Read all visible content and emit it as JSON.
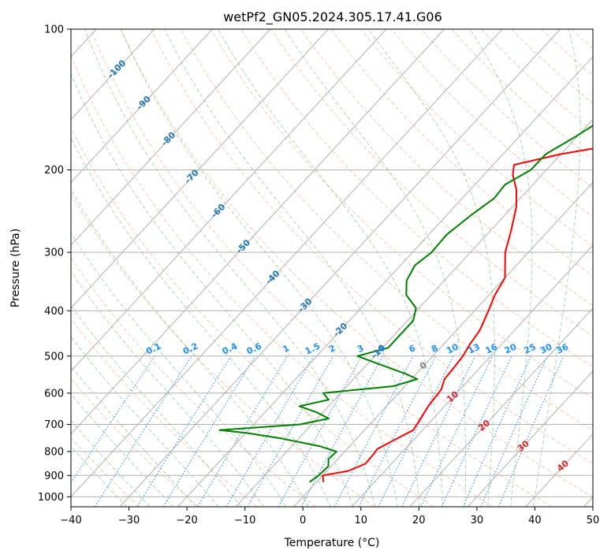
{
  "chart_data": {
    "type": "line",
    "subtype": "skew-T log-P diagram",
    "title": "wetPf2_GN05.2024.305.17.41.G06",
    "xlabel": "Temperature (°C)",
    "ylabel": "Pressure (hPa)",
    "xlim": [
      -40,
      50
    ],
    "ylim": [
      1050,
      100
    ],
    "y_scale": "log",
    "x_ticks": [
      -40,
      -30,
      -20,
      -10,
      0,
      10,
      20,
      30,
      40,
      50
    ],
    "y_ticks": [
      100,
      200,
      300,
      400,
      500,
      600,
      700,
      800,
      900,
      1000
    ],
    "x_tick_labels": [
      "−40",
      "−30",
      "−20",
      "−10",
      "0",
      "10",
      "20",
      "30",
      "40",
      "50"
    ],
    "y_tick_labels": [
      "100",
      "200",
      "300",
      "400",
      "500",
      "600",
      "700",
      "800",
      "900",
      "1000"
    ],
    "grid": true,
    "series": [
      {
        "color": "#ff0000",
        "points": [
          [
            930,
            1.2
          ],
          [
            900,
            0.0
          ],
          [
            880,
            3.7
          ],
          [
            850,
            5.5
          ],
          [
            810,
            5.4
          ],
          [
            790,
            5.2
          ],
          [
            760,
            6.5
          ],
          [
            720,
            8.4
          ],
          [
            690,
            8.0
          ],
          [
            640,
            7.2
          ],
          [
            590,
            6.8
          ],
          [
            560,
            5.7
          ],
          [
            520,
            5.4
          ],
          [
            500,
            5.2
          ],
          [
            470,
            4.5
          ],
          [
            440,
            4.0
          ],
          [
            400,
            2.4
          ],
          [
            370,
            1.0
          ],
          [
            340,
            0.0
          ],
          [
            300,
            -4.0
          ],
          [
            270,
            -6.4
          ],
          [
            240,
            -9.3
          ],
          [
            220,
            -12.1
          ],
          [
            205,
            -15.0
          ],
          [
            195,
            -16.4
          ],
          [
            185,
            -10.0
          ],
          [
            175,
            -0.5
          ],
          [
            160,
            8.5
          ],
          [
            145,
            14.6
          ],
          [
            135,
            15.6
          ],
          [
            125,
            14.0
          ],
          [
            115,
            15.0
          ],
          [
            110,
            16.3
          ],
          [
            105,
            17.3
          ],
          [
            100,
            18.6
          ]
        ]
      },
      {
        "color": "#008000",
        "points": [
          [
            930,
            -1.2
          ],
          [
            900,
            -0.7
          ],
          [
            860,
            -0.5
          ],
          [
            830,
            -1.6
          ],
          [
            800,
            -1.4
          ],
          [
            780,
            -5.0
          ],
          [
            750,
            -13.0
          ],
          [
            730,
            -20.0
          ],
          [
            720,
            -25.0
          ],
          [
            700,
            -12.0
          ],
          [
            680,
            -8.0
          ],
          [
            660,
            -11.0
          ],
          [
            640,
            -15.0
          ],
          [
            620,
            -11.0
          ],
          [
            600,
            -13.0
          ],
          [
            580,
            -2.0
          ],
          [
            560,
            1.0
          ],
          [
            545,
            -2.0
          ],
          [
            520,
            -8.0
          ],
          [
            500,
            -13.0
          ],
          [
            480,
            -9.0
          ],
          [
            450,
            -9.0
          ],
          [
            420,
            -9.0
          ],
          [
            395,
            -10.5
          ],
          [
            370,
            -14.3
          ],
          [
            345,
            -16.5
          ],
          [
            320,
            -17.5
          ],
          [
            300,
            -16.7
          ],
          [
            275,
            -16.9
          ],
          [
            250,
            -15.8
          ],
          [
            230,
            -14.5
          ],
          [
            215,
            -14.8
          ],
          [
            200,
            -12.7
          ],
          [
            185,
            -12.6
          ],
          [
            170,
            -10.3
          ],
          [
            155,
            -8.2
          ],
          [
            140,
            -5.5
          ],
          [
            125,
            0.0
          ],
          [
            113,
            7.6
          ],
          [
            105,
            11.9
          ],
          [
            100,
            13.3
          ]
        ]
      }
    ],
    "dry_adiabats_color": "#ff7f50",
    "moist_adiabats_color": "#2ca02c",
    "mixing_ratio_color": "#1e90ff",
    "isotherm_label_color": "#1f77b4",
    "lcl_label_color": "#d62728",
    "isotherm_labels": [
      "-100",
      "-90",
      "-80",
      "-70",
      "-60",
      "-50",
      "-40",
      "-30",
      "-20",
      "-10"
    ],
    "mixing_ratio_labels": [
      "0.1",
      "0.2",
      "0.4",
      "0.6",
      "1",
      "1.5",
      "2",
      "3",
      "4",
      "6",
      "8",
      "10",
      "13",
      "16",
      "20",
      "25",
      "30",
      "36"
    ],
    "lcl_labels": [
      "0",
      "10",
      "20",
      "30",
      "40"
    ]
  }
}
